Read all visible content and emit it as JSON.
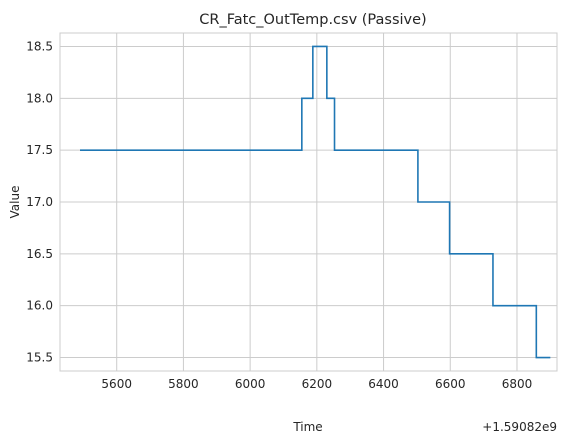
{
  "chart_data": {
    "type": "line",
    "title": "CR_Fatc_OutTemp.csv (Passive)",
    "xlabel": "Time",
    "ylabel": "Value",
    "offset_label": "+1.59082e9",
    "xlim": [
      5430,
      6920
    ],
    "ylim": [
      15.37,
      18.63
    ],
    "x_ticks": [
      5600,
      5800,
      6000,
      6200,
      6400,
      6600,
      6800
    ],
    "y_ticks": [
      15.5,
      16.0,
      16.5,
      17.0,
      17.5,
      18.0,
      18.5
    ],
    "y_tick_labels": [
      "15.5",
      "16.0",
      "16.5",
      "17.0",
      "17.5",
      "18.0",
      "18.5"
    ],
    "grid": true,
    "step": "post",
    "series": [
      {
        "color": "#1f77b4",
        "x": [
          5490,
          6155,
          6188,
          6230,
          6253,
          6503,
          6598,
          6728,
          6858,
          6900
        ],
        "y": [
          17.5,
          18.0,
          18.5,
          18.0,
          17.5,
          17.0,
          16.5,
          16.0,
          15.5,
          15.5
        ]
      }
    ]
  }
}
